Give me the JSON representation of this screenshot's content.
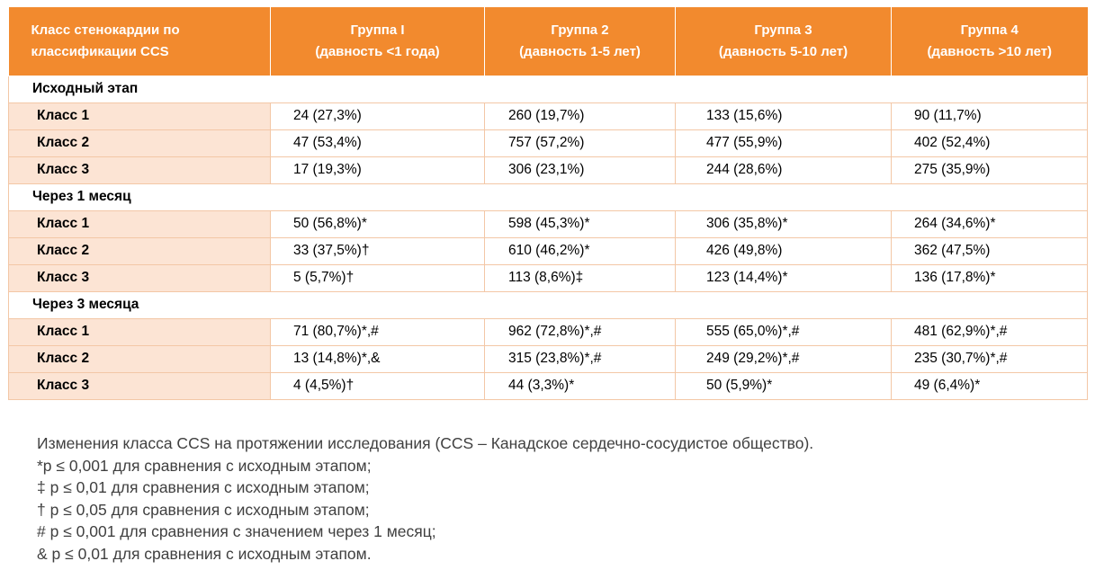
{
  "table": {
    "headers": [
      {
        "line1": "Класс стенокардии по",
        "line2": "классификации CCS"
      },
      {
        "line1": "Группа I",
        "line2": "(давность <1 года)"
      },
      {
        "line1": "Группа 2",
        "line2": "(давность 1-5 лет)"
      },
      {
        "line1": "Группа 3",
        "line2": "(давность 5-10 лет)"
      },
      {
        "line1": "Группа 4",
        "line2": "(давность >10 лет)"
      }
    ],
    "sections": [
      {
        "title": "Исходный этап",
        "rows": [
          {
            "label": "Класс 1",
            "values": [
              "24 (27,3%)",
              "260 (19,7%)",
              "133 (15,6%)",
              "90 (11,7%)"
            ]
          },
          {
            "label": "Класс 2",
            "values": [
              "47 (53,4%)",
              "757 (57,2%)",
              "477 (55,9%)",
              "402 (52,4%)"
            ]
          },
          {
            "label": "Класс 3",
            "values": [
              "17 (19,3%)",
              "306 (23,1%)",
              "244 (28,6%)",
              "275 (35,9%)"
            ]
          }
        ]
      },
      {
        "title": "Через 1 месяц",
        "rows": [
          {
            "label": "Класс 1",
            "values": [
              "50 (56,8%)*",
              "598 (45,3%)*",
              "306 (35,8%)*",
              "264 (34,6%)*"
            ]
          },
          {
            "label": "Класс 2",
            "values": [
              "33 (37,5%)†",
              "610 (46,2%)*",
              "426 (49,8%)",
              "362 (47,5%)"
            ]
          },
          {
            "label": "Класс 3",
            "values": [
              "5 (5,7%)†",
              "113 (8,6%)‡",
              "123 (14,4%)*",
              "136 (17,8%)*"
            ]
          }
        ]
      },
      {
        "title": "Через 3 месяца",
        "rows": [
          {
            "label": "Класс 1",
            "values": [
              "71 (80,7%)*,#",
              "962 (72,8%)*,#",
              "555 (65,0%)*,#",
              "481 (62,9%)*,#"
            ]
          },
          {
            "label": "Класс 2",
            "values": [
              "13 (14,8%)*,&",
              "315 (23,8%)*,#",
              "249 (29,2%)*,#",
              "235 (30,7%)*,#"
            ]
          },
          {
            "label": "Класс 3",
            "values": [
              "4 (4,5%)†",
              "44 (3,3%)*",
              "50 (5,9%)*",
              "49 (6,4%)*"
            ]
          }
        ]
      }
    ]
  },
  "notes": [
    "Изменения класса CCS на протяжении исследования (CCS – Канадское сердечно-сосудистое общество).",
    "*p ≤ 0,001 для сравнения с исходным этапом;",
    "‡ p ≤ 0,01 для сравнения с исходным этапом;",
    "† p ≤ 0,05 для сравнения с исходным этапом;",
    "# p ≤ 0,001 для сравнения с значением через 1 месяц;",
    "& p ≤ 0,01 для сравнения с исходным этапом."
  ],
  "colors": {
    "header_bg": "#f28a2e",
    "label_bg": "#fce4d4",
    "border": "#f3c7a6",
    "notes_text": "#404040"
  }
}
